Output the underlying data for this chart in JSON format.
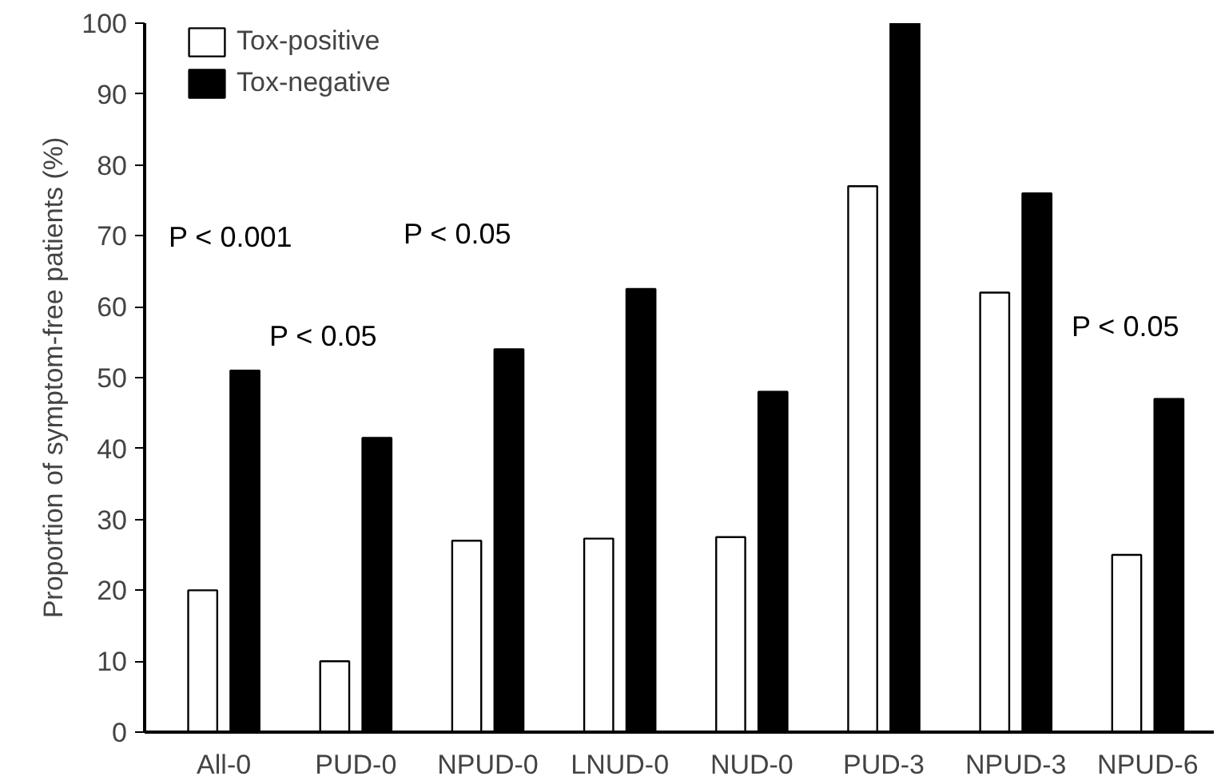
{
  "chart_data": {
    "type": "bar",
    "ylabel": "Proportion of symptom-free patients (%)",
    "categories": [
      "All-0",
      "PUD-0",
      "NPUD-0",
      "LNUD-0",
      "NUD-0",
      "PUD-3",
      "NPUD-3",
      "NPUD-6"
    ],
    "series": [
      {
        "name": "Tox-positive",
        "color": "#ffffff",
        "values": [
          20,
          10,
          27,
          27.3,
          27.5,
          77,
          62,
          25
        ]
      },
      {
        "name": "Tox-negative",
        "color": "#000000",
        "values": [
          51,
          41.5,
          54,
          62.5,
          48,
          100,
          76,
          47
        ]
      }
    ],
    "ylim": [
      0,
      100
    ],
    "yticks": [
      0,
      10,
      20,
      30,
      40,
      50,
      60,
      70,
      80,
      90,
      100
    ],
    "grid": false,
    "legend": "top left",
    "annotations": [
      "P < 0.001",
      "P < 0.05",
      "P < 0.05",
      "P < 0.05"
    ]
  }
}
